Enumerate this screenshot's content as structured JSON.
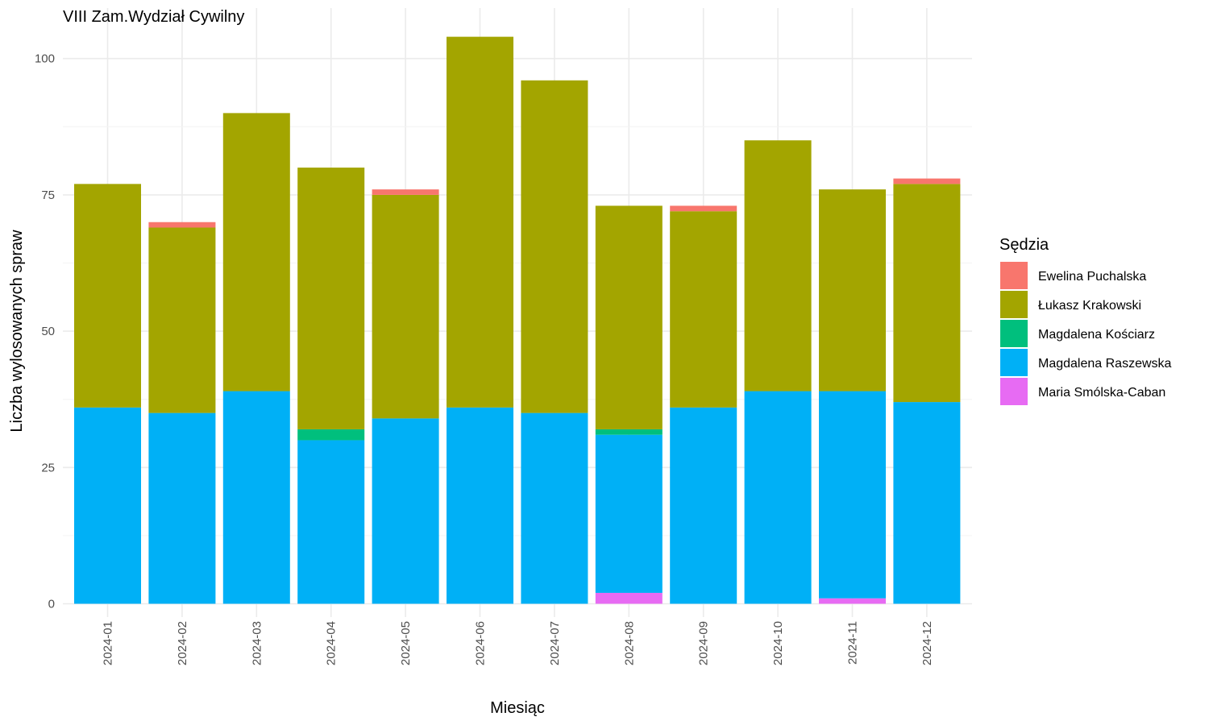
{
  "chart_data": {
    "type": "bar",
    "stacked": true,
    "title": "VIII Zam.Wydział Cywilny",
    "xlabel": "Miesiąc",
    "ylabel": "Liczba wylosowanych spraw",
    "ylim": [
      0,
      105
    ],
    "yticks": [
      0,
      25,
      50,
      75,
      100
    ],
    "grid": true,
    "legend_title": "Sędzia",
    "legend_position": "right",
    "categories": [
      "2024-01",
      "2024-02",
      "2024-03",
      "2024-04",
      "2024-05",
      "2024-06",
      "2024-07",
      "2024-08",
      "2024-09",
      "2024-10",
      "2024-11",
      "2024-12"
    ],
    "stack_order_bottom_to_top": [
      "Maria Smólska-Caban",
      "Magdalena Raszewska",
      "Magdalena Kościarz",
      "Łukasz Krakowski",
      "Ewelina Puchalska"
    ],
    "series": [
      {
        "name": "Ewelina Puchalska",
        "color": "#F8766D",
        "values": [
          0,
          1,
          0,
          0,
          1,
          0,
          0,
          0,
          1,
          0,
          0,
          1
        ]
      },
      {
        "name": "Łukasz Krakowski",
        "color": "#A3A500",
        "values": [
          41,
          34,
          51,
          48,
          41,
          68,
          61,
          41,
          36,
          46,
          37,
          40
        ]
      },
      {
        "name": "Magdalena Kościarz",
        "color": "#00BF7D",
        "values": [
          0,
          0,
          0,
          2,
          0,
          0,
          0,
          1,
          0,
          0,
          0,
          0
        ]
      },
      {
        "name": "Magdalena Raszewska",
        "color": "#00B0F6",
        "values": [
          36,
          35,
          39,
          30,
          34,
          36,
          35,
          29,
          36,
          39,
          38,
          37
        ]
      },
      {
        "name": "Maria Smólska-Caban",
        "color": "#E76BF3",
        "values": [
          0,
          0,
          0,
          0,
          0,
          0,
          0,
          2,
          0,
          0,
          1,
          0
        ]
      }
    ]
  }
}
